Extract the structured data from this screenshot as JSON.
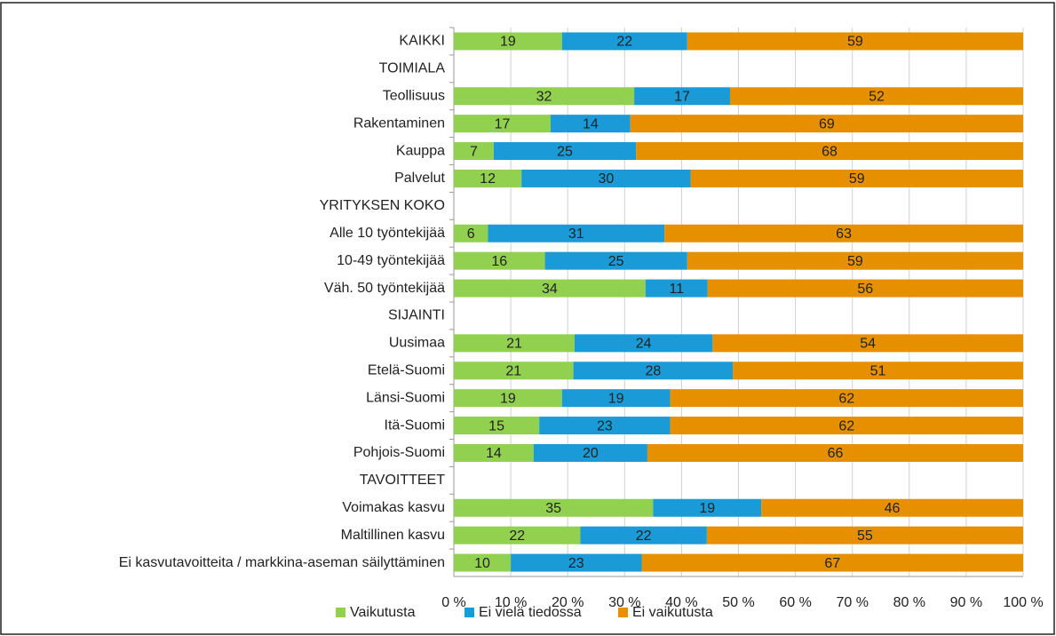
{
  "chart_data": {
    "type": "bar",
    "orientation": "horizontal",
    "stacking": "percent",
    "categories": [
      "KAIKKI",
      "TOIMIALA",
      "Teollisuus",
      "Rakentaminen",
      "Kauppa",
      "Palvelut",
      "YRITYKSEN KOKO",
      "Alle 10 työntekijää",
      "10-49 työntekijää",
      "Väh. 50 työntekijää",
      "SIJAINTI",
      "Uusimaa",
      "Etelä-Suomi",
      "Länsi-Suomi",
      "Itä-Suomi",
      "Pohjois-Suomi",
      "TAVOITTEET",
      "Voimakas kasvu",
      "Maltillinen kasvu",
      "Ei kasvutavoitteita / markkina-aseman säilyttäminen"
    ],
    "series": [
      {
        "name": "Vaikutusta",
        "color": "#92d050",
        "values": [
          19,
          null,
          32,
          17,
          7,
          12,
          null,
          6,
          16,
          34,
          null,
          21,
          21,
          19,
          15,
          14,
          null,
          35,
          22,
          10
        ]
      },
      {
        "name": "Ei vielä tiedossa",
        "color": "#1a9bd7",
        "values": [
          22,
          null,
          17,
          14,
          25,
          30,
          null,
          31,
          25,
          11,
          null,
          24,
          28,
          19,
          23,
          20,
          null,
          19,
          22,
          23
        ]
      },
      {
        "name": "Ei vaikutusta",
        "color": "#e69000",
        "values": [
          59,
          null,
          52,
          69,
          68,
          59,
          null,
          63,
          59,
          56,
          null,
          54,
          51,
          62,
          62,
          66,
          null,
          46,
          55,
          67
        ]
      }
    ],
    "xlim": [
      0,
      100
    ],
    "xticks": [
      {
        "value": 0,
        "label": "0 %"
      },
      {
        "value": 10,
        "label": "10 %"
      },
      {
        "value": 20,
        "label": "20 %"
      },
      {
        "value": 30,
        "label": "30 %"
      },
      {
        "value": 40,
        "label": "40 %"
      },
      {
        "value": 50,
        "label": "50 %"
      },
      {
        "value": 60,
        "label": "60 %"
      },
      {
        "value": 70,
        "label": "70 %"
      },
      {
        "value": 80,
        "label": "80 %"
      },
      {
        "value": 90,
        "label": "90 %"
      },
      {
        "value": 100,
        "label": "100 %"
      }
    ],
    "grid": true,
    "legend": "bottom"
  }
}
